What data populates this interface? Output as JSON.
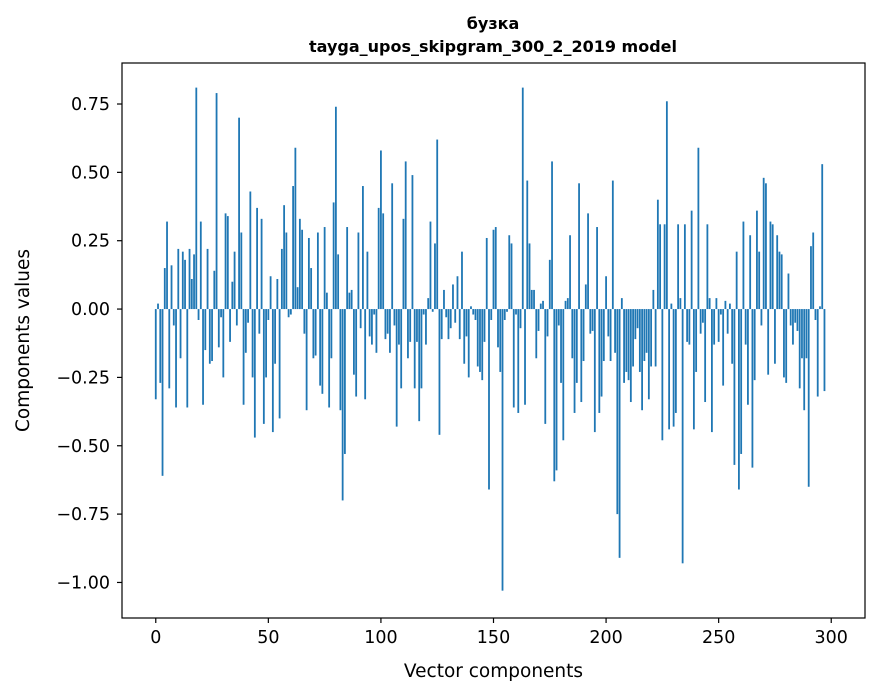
{
  "chart_data": {
    "type": "bar",
    "title": "бузка",
    "subtitle": "tayga_upos_skipgram_300_2_2019 model",
    "xlabel": "Vector components",
    "ylabel": "Components values",
    "xlim": [
      -15,
      315
    ],
    "ylim": [
      -1.13,
      0.9
    ],
    "xticks": [
      0,
      50,
      100,
      150,
      200,
      250,
      300
    ],
    "yticks": [
      -1.0,
      -0.75,
      -0.5,
      -0.25,
      0.0,
      0.25,
      0.5,
      0.75
    ],
    "xtick_labels": [
      "0",
      "50",
      "100",
      "150",
      "200",
      "250",
      "300"
    ],
    "ytick_labels": [
      "−1.00",
      "−0.75",
      "−0.50",
      "−0.25",
      "0.00",
      "0.25",
      "0.50",
      "0.75"
    ],
    "bar_color": "#1f77b4",
    "grid": false,
    "x_start": 0,
    "values": [
      -0.33,
      0.02,
      -0.27,
      -0.61,
      0.15,
      0.32,
      -0.29,
      0.16,
      -0.06,
      -0.36,
      0.22,
      -0.18,
      0.21,
      0.18,
      -0.36,
      0.22,
      0.11,
      0.2,
      0.81,
      -0.04,
      0.32,
      -0.35,
      -0.15,
      0.22,
      -0.2,
      -0.19,
      0.14,
      0.79,
      -0.14,
      -0.03,
      -0.25,
      0.35,
      0.34,
      -0.12,
      0.1,
      0.21,
      -0.06,
      0.7,
      0.28,
      -0.35,
      -0.16,
      -0.05,
      0.43,
      -0.25,
      -0.47,
      0.37,
      -0.09,
      0.33,
      -0.42,
      -0.25,
      -0.04,
      0.12,
      -0.45,
      -0.2,
      0.11,
      -0.4,
      0.22,
      0.38,
      0.28,
      -0.03,
      -0.02,
      0.45,
      0.59,
      0.08,
      0.33,
      0.29,
      -0.09,
      -0.37,
      0.26,
      0.15,
      -0.18,
      -0.17,
      0.28,
      -0.28,
      -0.31,
      0.3,
      0.06,
      -0.36,
      -0.18,
      0.39,
      0.74,
      0.2,
      -0.37,
      -0.7,
      -0.53,
      0.3,
      0.06,
      0.07,
      -0.24,
      -0.32,
      0.28,
      -0.07,
      0.45,
      -0.33,
      0.21,
      -0.1,
      -0.13,
      -0.02,
      -0.16,
      0.37,
      0.58,
      0.35,
      -0.11,
      -0.09,
      -0.16,
      0.46,
      -0.06,
      -0.43,
      -0.13,
      -0.29,
      0.33,
      0.54,
      -0.18,
      -0.12,
      0.49,
      -0.29,
      -0.12,
      -0.41,
      -0.29,
      -0.02,
      -0.13,
      0.04,
      0.32,
      -0.01,
      0.24,
      0.62,
      -0.46,
      -0.11,
      0.07,
      -0.03,
      -0.11,
      -0.07,
      0.09,
      -0.05,
      0.12,
      -0.11,
      0.21,
      -0.2,
      -0.1,
      -0.25,
      0.01,
      -0.02,
      -0.04,
      -0.21,
      -0.23,
      -0.26,
      -0.12,
      0.26,
      -0.66,
      -0.04,
      0.29,
      0.3,
      -0.14,
      -0.23,
      -1.03,
      -0.04,
      -0.01,
      0.27,
      0.24,
      -0.36,
      -0.02,
      -0.38,
      -0.07,
      0.81,
      -0.35,
      0.47,
      0.24,
      0.07,
      0.07,
      -0.18,
      -0.08,
      0.02,
      0.03,
      -0.42,
      -0.1,
      0.18,
      0.54,
      -0.63,
      -0.59,
      -0.06,
      -0.27,
      -0.48,
      0.03,
      0.04,
      0.27,
      -0.18,
      -0.38,
      -0.27,
      0.46,
      -0.34,
      -0.19,
      0.09,
      0.35,
      -0.09,
      -0.08,
      -0.45,
      0.3,
      -0.38,
      -0.32,
      -0.19,
      0.12,
      -0.1,
      -0.19,
      0.47,
      -0.16,
      -0.75,
      -0.91,
      0.04,
      -0.27,
      -0.23,
      -0.26,
      -0.34,
      -0.21,
      -0.11,
      -0.07,
      -0.23,
      -0.37,
      -0.19,
      -0.16,
      -0.33,
      -0.21,
      0.07,
      -0.21,
      0.4,
      0.31,
      -0.48,
      0.31,
      0.76,
      -0.44,
      0.02,
      -0.43,
      -0.38,
      0.31,
      0.04,
      -0.93,
      0.31,
      -0.12,
      -0.13,
      0.36,
      -0.44,
      -0.23,
      0.59,
      -0.09,
      -0.05,
      -0.34,
      0.31,
      0.04,
      -0.45,
      -0.13,
      0.04,
      -0.12,
      -0.02,
      -0.28,
      0.03,
      -0.09,
      0.02,
      -0.2,
      -0.57,
      0.21,
      -0.66,
      -0.53,
      0.32,
      -0.13,
      -0.35,
      0.27,
      -0.58,
      -0.26,
      0.36,
      0.21,
      -0.06,
      0.48,
      0.46,
      -0.24,
      0.32,
      0.31,
      -0.2,
      0.27,
      0.21,
      0.2,
      -0.25,
      -0.27,
      0.13,
      -0.06,
      -0.13,
      -0.05,
      -0.08,
      -0.29,
      -0.18,
      -0.37,
      -0.18,
      -0.65,
      0.23,
      0.28,
      -0.04,
      -0.32,
      0.01,
      0.53,
      -0.3
    ]
  }
}
